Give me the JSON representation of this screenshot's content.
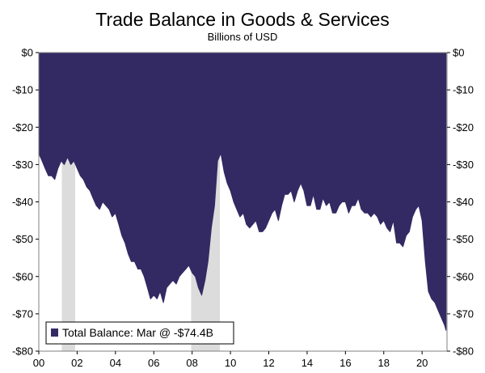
{
  "chart_data": {
    "type": "area",
    "title": "Trade Balance in Goods & Services",
    "subtitle": "Billions of USD",
    "xlabel": "",
    "ylabel": "",
    "xlim": [
      2000,
      2021.3
    ],
    "ylim": [
      -80,
      0
    ],
    "y_ticks": [
      0,
      -10,
      -20,
      -30,
      -40,
      -50,
      -60,
      -70,
      -80
    ],
    "y_tick_labels": [
      "$0",
      "-$10",
      "-$20",
      "-$30",
      "-$40",
      "-$50",
      "-$60",
      "-$70",
      "-$80"
    ],
    "x_ticks": [
      2000,
      2002,
      2004,
      2006,
      2008,
      2010,
      2012,
      2014,
      2016,
      2018,
      2020
    ],
    "x_tick_labels": [
      "00",
      "02",
      "04",
      "06",
      "08",
      "10",
      "12",
      "14",
      "16",
      "18",
      "20"
    ],
    "grid": false,
    "legend_position": "bottom-left",
    "colors": {
      "series": "#332a63",
      "recession": "#dcdcdc"
    },
    "recessions": [
      [
        2001.2,
        2001.9
      ],
      [
        2007.95,
        2009.45
      ]
    ],
    "series": [
      {
        "name": "Total Balance: Mar @ -$74.4B",
        "x": [
          2000.0,
          2000.17,
          2000.33,
          2000.5,
          2000.67,
          2000.83,
          2001.0,
          2001.17,
          2001.33,
          2001.5,
          2001.67,
          2001.83,
          2002.0,
          2002.17,
          2002.33,
          2002.5,
          2002.67,
          2002.83,
          2003.0,
          2003.17,
          2003.33,
          2003.5,
          2003.67,
          2003.83,
          2004.0,
          2004.17,
          2004.33,
          2004.5,
          2004.67,
          2004.83,
          2005.0,
          2005.17,
          2005.33,
          2005.5,
          2005.67,
          2005.83,
          2006.0,
          2006.17,
          2006.33,
          2006.5,
          2006.67,
          2006.83,
          2007.0,
          2007.17,
          2007.33,
          2007.5,
          2007.67,
          2007.83,
          2008.0,
          2008.17,
          2008.33,
          2008.5,
          2008.67,
          2008.83,
          2009.0,
          2009.17,
          2009.33,
          2009.5,
          2009.67,
          2009.83,
          2010.0,
          2010.17,
          2010.33,
          2010.5,
          2010.67,
          2010.83,
          2011.0,
          2011.17,
          2011.33,
          2011.5,
          2011.67,
          2011.83,
          2012.0,
          2012.17,
          2012.33,
          2012.5,
          2012.67,
          2012.83,
          2013.0,
          2013.17,
          2013.33,
          2013.5,
          2013.67,
          2013.83,
          2014.0,
          2014.17,
          2014.33,
          2014.5,
          2014.67,
          2014.83,
          2015.0,
          2015.17,
          2015.33,
          2015.5,
          2015.67,
          2015.83,
          2016.0,
          2016.17,
          2016.33,
          2016.5,
          2016.67,
          2016.83,
          2017.0,
          2017.17,
          2017.33,
          2017.5,
          2017.67,
          2017.83,
          2018.0,
          2018.17,
          2018.33,
          2018.5,
          2018.67,
          2018.83,
          2019.0,
          2019.17,
          2019.33,
          2019.5,
          2019.67,
          2019.83,
          2020.0,
          2020.17,
          2020.33,
          2020.5,
          2020.67,
          2020.83,
          2021.0,
          2021.17,
          2021.25
        ],
        "values": [
          -27,
          -29,
          -31,
          -33,
          -33,
          -34,
          -31,
          -29,
          -30,
          -28,
          -30,
          -29,
          -31,
          -33,
          -34,
          -36,
          -37,
          -39,
          -41,
          -42,
          -40,
          -41,
          -42,
          -44,
          -43,
          -46,
          -49,
          -51,
          -54,
          -56,
          -56,
          -58,
          -58,
          -60,
          -63,
          -66,
          -65,
          -66,
          -64,
          -67,
          -63,
          -62,
          -61,
          -62,
          -60,
          -59,
          -58,
          -57,
          -59,
          -60,
          -63,
          -65,
          -61,
          -56,
          -47,
          -41,
          -29,
          -27,
          -32,
          -35,
          -37,
          -40,
          -42,
          -44,
          -43,
          -46,
          -47,
          -46,
          -45,
          -48,
          -48,
          -47,
          -45,
          -43,
          -42,
          -45,
          -41,
          -38,
          -38,
          -37,
          -40,
          -37,
          -35,
          -37,
          -41,
          -41,
          -38,
          -42,
          -42,
          -39,
          -41,
          -40,
          -43,
          -43,
          -41,
          -40,
          -40,
          -43,
          -41,
          -41,
          -39,
          -42,
          -43,
          -43,
          -44,
          -43,
          -44,
          -46,
          -45,
          -47,
          -48,
          -45,
          -51,
          -51,
          -52,
          -49,
          -48,
          -44,
          -42,
          -41,
          -45,
          -56,
          -64,
          -66,
          -67,
          -69,
          -71,
          -73,
          -74.4
        ]
      }
    ]
  }
}
